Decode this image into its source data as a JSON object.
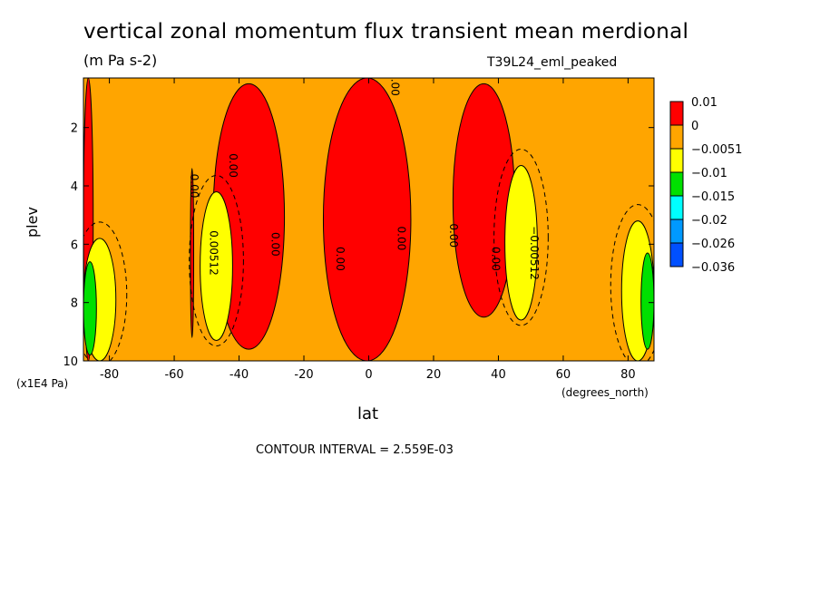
{
  "chart_data": {
    "type": "heatmap",
    "title": "vertical zonal momentum flux transient mean merdional",
    "units": "(m Pa s-2)",
    "run_label": "T39L24_eml_peaked",
    "xlabel": "lat",
    "x_units": "(degrees_north)",
    "ylabel": "plev",
    "y_units": "(x1E4 Pa)",
    "xlim": [
      -88,
      88
    ],
    "ylim": [
      10,
      0.3
    ],
    "x_ticks": [
      "-80",
      "-60",
      "-40",
      "-20",
      "0",
      "20",
      "40",
      "60",
      "80"
    ],
    "y_ticks": [
      "2",
      "4",
      "6",
      "8",
      "10"
    ],
    "contour_interval": "CONTOUR INTERVAL = 2.559E-03",
    "colorbar": {
      "labels": [
        "0.01",
        "0",
        "−0.0051",
        "−0.01",
        "−0.015",
        "−0.02",
        "−0.026",
        "−0.036"
      ],
      "colors": [
        "#ff0000",
        "#ffa500",
        "#ffff00",
        "#00e000",
        "#00ffff",
        "#0099ff",
        "#0050ff"
      ]
    },
    "regions": [
      {
        "level": "positive",
        "color": "#ff0000",
        "lat": [
          -88,
          -85
        ],
        "plev": [
          0.3,
          10
        ]
      },
      {
        "level": "positive",
        "color": "#ff0000",
        "lat": [
          -48,
          -26
        ],
        "plev": [
          0.5,
          9.6
        ]
      },
      {
        "level": "positive",
        "color": "#ff0000",
        "lat": [
          -14,
          13
        ],
        "plev": [
          0.3,
          10
        ]
      },
      {
        "level": "positive",
        "color": "#ff0000",
        "lat": [
          26,
          45
        ],
        "plev": [
          0.5,
          8.5
        ]
      },
      {
        "level": "positive",
        "color": "#ff0000",
        "lat": [
          -55,
          -54
        ],
        "plev": [
          3.4,
          9.2
        ]
      },
      {
        "level": "negative",
        "color": "#ffff00",
        "lat": [
          -52,
          -42
        ],
        "plev": [
          4.2,
          9.3
        ]
      },
      {
        "level": "negative",
        "color": "#ffff00",
        "lat": [
          42,
          52
        ],
        "plev": [
          3.3,
          8.6
        ]
      },
      {
        "level": "negative",
        "color": "#ffff00",
        "lat": [
          -88,
          -78
        ],
        "plev": [
          5.8,
          10
        ]
      },
      {
        "level": "negative",
        "color": "#ffff00",
        "lat": [
          78,
          88
        ],
        "plev": [
          5.2,
          10
        ]
      },
      {
        "level": "strong-negative",
        "color": "#00e000",
        "lat": [
          -88,
          -84
        ],
        "plev": [
          6.6,
          9.8
        ]
      },
      {
        "level": "strong-negative",
        "color": "#00e000",
        "lat": [
          84,
          88
        ],
        "plev": [
          6.3,
          9.6
        ]
      }
    ],
    "contour_labels": [
      {
        "text": "0.00",
        "lat": 7,
        "plev": 0.5
      },
      {
        "text": "0.00",
        "lat": -55,
        "plev": 4.0
      },
      {
        "text": "0.00",
        "lat": -43,
        "plev": 3.3
      },
      {
        "text": "0.00512",
        "lat": -49,
        "plev": 6.3
      },
      {
        "text": "0.00",
        "lat": -30,
        "plev": 6.0
      },
      {
        "text": "0.00",
        "lat": -10,
        "plev": 6.5
      },
      {
        "text": "0.00",
        "lat": 9,
        "plev": 5.8
      },
      {
        "text": "0.00",
        "lat": 25,
        "plev": 5.7
      },
      {
        "text": "0.00",
        "lat": 38,
        "plev": 6.5
      },
      {
        "text": "−0.00512",
        "lat": 50,
        "plev": 6.3
      }
    ]
  }
}
